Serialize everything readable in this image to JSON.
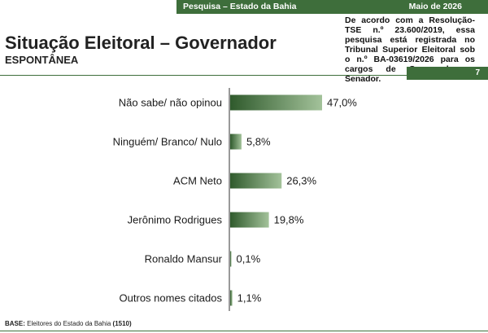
{
  "header": {
    "left": "Pesquisa – Estado da Bahia",
    "right": "Maio de 2026",
    "page_number": "7"
  },
  "title": "Situação Eleitoral – Governador",
  "subtitle": "ESPONTÂNEA",
  "notice": "De acordo com a Resolução-TSE n.º 23.600/2019, essa pesquisa está registrada no Tribunal Superior Eleitoral sob o n.º BA-03619/2026 para os cargos de Governador e Senador.",
  "footer": {
    "label": "BASE:",
    "text": "Eleitores do Estado da Bahia",
    "count": "(1510)"
  },
  "colors": {
    "accent": "#3e6e3b",
    "bar_dark": "#2f5a2c",
    "bar_light": "#a3c29a"
  },
  "chart_data": {
    "type": "bar",
    "orientation": "horizontal",
    "categories": [
      "Não sabe/ não opinou",
      "Ninguém/ Branco/ Nulo",
      "ACM Neto",
      "Jerônimo Rodrigues",
      "Ronaldo Mansur",
      "Outros nomes citados"
    ],
    "values": [
      47.0,
      5.8,
      26.3,
      19.8,
      0.1,
      1.1
    ],
    "value_labels": [
      "47,0%",
      "5,8%",
      "26,3%",
      "19,8%",
      "0,1%",
      "1,1%"
    ],
    "title": "",
    "xlabel": "",
    "ylabel": "",
    "xlim": [
      0,
      100
    ],
    "grid": false,
    "legend": "none"
  }
}
